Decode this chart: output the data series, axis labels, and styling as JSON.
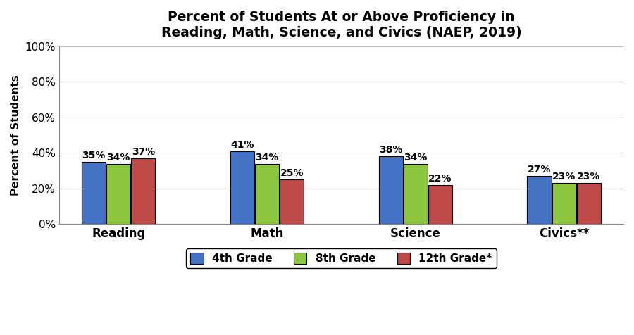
{
  "title": "Percent of Students At or Above Proficiency in\nReading, Math, Science, and Civics (NAEP, 2019)",
  "ylabel": "Percent of Students",
  "categories": [
    "Reading",
    "Math",
    "Science",
    "Civics**"
  ],
  "series": {
    "4th Grade": [
      35,
      41,
      38,
      27
    ],
    "8th Grade": [
      34,
      34,
      34,
      23
    ],
    "12th Grade*": [
      37,
      25,
      22,
      23
    ]
  },
  "colors": {
    "4th Grade": "#4472C4",
    "8th Grade": "#8DC63F",
    "12th Grade*": "#BE4B48"
  },
  "legend_labels": [
    "4th Grade",
    "8th Grade",
    "12th Grade*"
  ],
  "ylim": [
    0,
    100
  ],
  "yticks": [
    0,
    20,
    40,
    60,
    80,
    100
  ],
  "ytick_labels": [
    "0%",
    "20%",
    "40%",
    "60%",
    "80%",
    "100%"
  ],
  "bar_width": 0.25,
  "title_fontsize": 13.5,
  "axis_label_fontsize": 11,
  "tick_fontsize": 11,
  "legend_fontsize": 11,
  "annotation_fontsize": 10,
  "background_color": "#FFFFFF",
  "grid_color": "#BBBBBB"
}
